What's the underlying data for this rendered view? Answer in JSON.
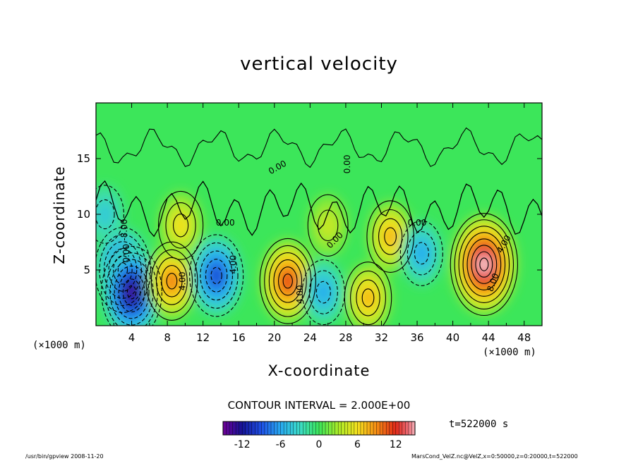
{
  "chart_data": {
    "type": "heatmap",
    "title": "vertical velocity",
    "xlabel": "X-coordinate",
    "ylabel": "Z-coordinate",
    "x_unit_left": "(×1000 m)",
    "x_unit_right": "(×1000 m)",
    "xlim": [
      0,
      50
    ],
    "ylim": [
      0,
      20
    ],
    "x_ticks": [
      4,
      8,
      12,
      16,
      20,
      24,
      28,
      32,
      36,
      40,
      44,
      48
    ],
    "y_ticks": [
      5,
      10,
      15
    ],
    "contour_interval_text": "CONTOUR INTERVAL = 2.000E+00",
    "contour_labels": [
      "0.00",
      "0.00",
      "0.00",
      "0.00",
      "0.00",
      "-8.00",
      "4.00",
      "4.00",
      "4.00",
      "4.00",
      "8.00",
      "0.00"
    ],
    "colorbar": {
      "min": -15,
      "max": 15,
      "ticks": [
        -12,
        -6,
        0,
        6,
        12
      ]
    },
    "time_label": "t=522000 s",
    "cells": [
      {
        "x": 3,
        "z": 5,
        "w": -11
      },
      {
        "x": 4,
        "z": 3,
        "w": -13
      },
      {
        "x": 8.5,
        "z": 4,
        "w": 9
      },
      {
        "x": 9.5,
        "z": 9,
        "w": 6
      },
      {
        "x": 13.5,
        "z": 4.5,
        "w": -10
      },
      {
        "x": 21.5,
        "z": 4,
        "w": 11
      },
      {
        "x": 25.5,
        "z": 3,
        "w": -5
      },
      {
        "x": 30.5,
        "z": 2.5,
        "w": 7
      },
      {
        "x": 33,
        "z": 8,
        "w": 7
      },
      {
        "x": 36.5,
        "z": 6.5,
        "w": -5
      },
      {
        "x": 43.5,
        "z": 5.5,
        "w": 16
      },
      {
        "x": 1,
        "z": 10,
        "w": -3
      },
      {
        "x": 26,
        "z": 9,
        "w": 4
      }
    ]
  },
  "footer_left": "/usr/bin/gpview   2008-11-20",
  "footer_right": "MarsCond_VelZ.nc@VelZ,x=0:50000,z=0:20000,t=522000"
}
